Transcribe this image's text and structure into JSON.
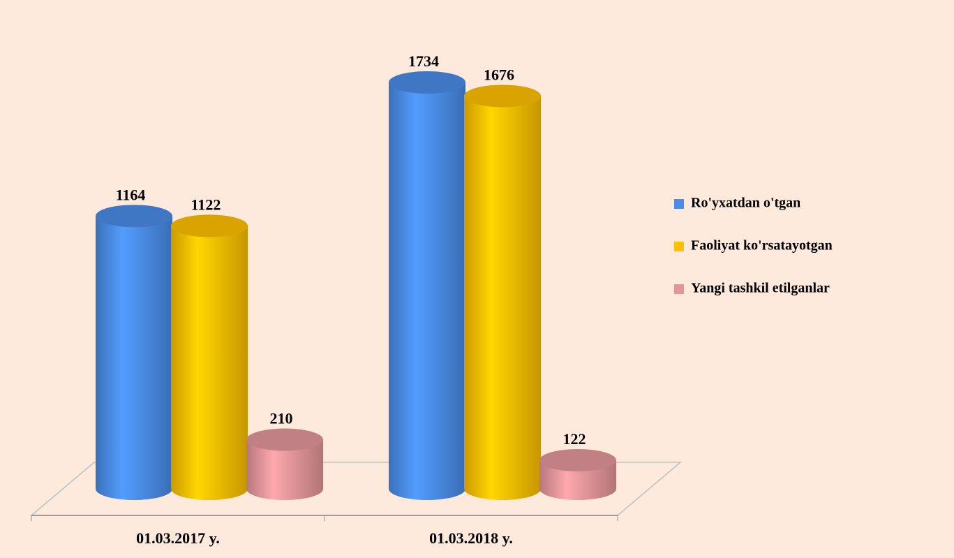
{
  "chart_data": {
    "type": "bar3d",
    "categories": [
      "01.03.2017 y.",
      "01.03.2018 y."
    ],
    "series": [
      {
        "name": "Ro'yxatdan o'tgan",
        "color": "#4a8ce8",
        "values": [
          1164,
          1734
        ]
      },
      {
        "name": "Faoliyat ko'rsatayotgan",
        "color": "#ffc000",
        "values": [
          1122,
          1676
        ]
      },
      {
        "name": "Yangi tashkil etilganlar",
        "color": "#e3969a",
        "values": [
          210,
          122
        ]
      }
    ],
    "legend": "right"
  }
}
